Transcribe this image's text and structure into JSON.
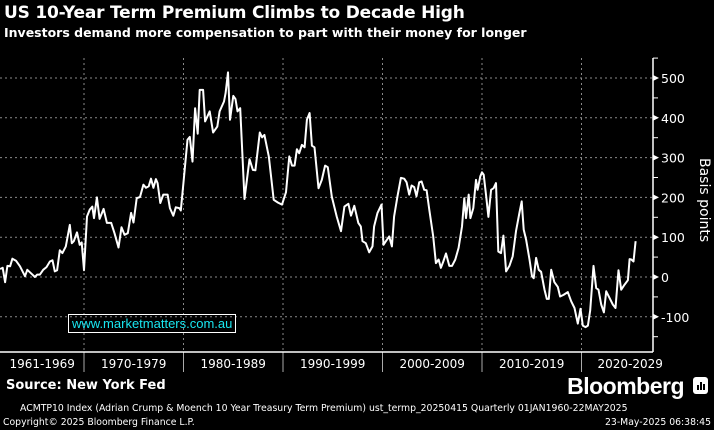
{
  "header": {
    "title": "US 10-Year Term Premium Climbs to Decade High",
    "subtitle": "Investors demand more compensation to part with their money for longer"
  },
  "watermark": "www.marketmatters.com.au",
  "footer": {
    "source": "Source: New York Fed",
    "brand": "Bloomberg",
    "description": "ACMTP10 Index (Adrian Crump & Moench 10 Year Treasury Term Premium) ust_termp_20250415  Quarterly 01JAN1960-22MAY2025",
    "copyright": "Copyright© 2025 Bloomberg Finance L.P.",
    "timestamp": "23-May-2025 06:38:45"
  },
  "colors": {
    "background": "#000000",
    "line": "#ffffff",
    "grid": "#8a8a8a",
    "watermark": "#19e6f0"
  },
  "chart_data": {
    "type": "line",
    "title": "US 10-Year Term Premium Climbs to Decade High",
    "ylabel": "Basis points",
    "xlabel": "",
    "ylim": [
      -150,
      550
    ],
    "xlim": [
      1961.5,
      2027.3
    ],
    "yticks": [
      -100,
      0,
      100,
      200,
      300,
      400,
      500
    ],
    "ytick_labels": [
      "-100",
      "0",
      "100",
      "200",
      "300",
      "400",
      "500"
    ],
    "xtick_labels": [
      "1961-1969",
      "1970-1979",
      "1980-1989",
      "1990-1999",
      "2000-2009",
      "2010-2019",
      "2020-2029"
    ],
    "xtick_centers": [
      1965.8,
      1975,
      1985,
      1995,
      2005,
      2015,
      2024.9
    ],
    "decade_boundaries": [
      1970,
      1980,
      1990,
      2000,
      2010,
      2020
    ],
    "grid": true,
    "series": [
      {
        "name": "ACMTP10 Index",
        "x": [
          1961.57,
          1961.83,
          1962.07,
          1962.3,
          1962.57,
          1962.8,
          1963.17,
          1963.57,
          1964.07,
          1964.3,
          1964.73,
          1965.07,
          1965.3,
          1965.57,
          1965.9,
          1966.23,
          1966.57,
          1966.83,
          1967.07,
          1967.3,
          1967.57,
          1967.83,
          1968.17,
          1968.57,
          1968.77,
          1968.97,
          1969.3,
          1969.57,
          1969.77,
          1970.0,
          1970.3,
          1970.57,
          1970.83,
          1971.0,
          1971.3,
          1971.57,
          1971.97,
          1972.3,
          1972.73,
          1973.07,
          1973.47,
          1973.77,
          1974.07,
          1974.4,
          1974.73,
          1974.97,
          1975.3,
          1975.63,
          1975.97,
          1976.23,
          1976.5,
          1976.73,
          1976.97,
          1977.23,
          1977.4,
          1977.67,
          1977.97,
          1978.4,
          1978.63,
          1978.97,
          1979.23,
          1979.57,
          1979.73,
          1980.0,
          1980.4,
          1980.63,
          1980.9,
          1981.17,
          1981.43,
          1981.63,
          1981.97,
          1982.17,
          1982.63,
          1982.97,
          1983.4,
          1983.63,
          1984.07,
          1984.23,
          1984.47,
          1984.67,
          1985.0,
          1985.23,
          1985.43,
          1985.7,
          1986.13,
          1986.63,
          1986.97,
          1987.23,
          1987.67,
          1987.9,
          1988.13,
          1988.57,
          1989.07,
          1989.5,
          1989.9,
          1990.3,
          1990.63,
          1990.9,
          1991.17,
          1991.4,
          1991.63,
          1991.9,
          1992.17,
          1992.4,
          1992.67,
          1992.9,
          1993.17,
          1993.57,
          1993.9,
          1994.23,
          1994.5,
          1994.9,
          1995.4,
          1995.83,
          1996.17,
          1996.57,
          1996.83,
          1997.17,
          1997.57,
          1997.82,
          1997.99,
          1998.32,
          1998.66,
          1998.99,
          1999.16,
          1999.5,
          1999.9,
          2000.1,
          2000.34,
          2000.67,
          2000.94,
          2001.17,
          2001.51,
          2001.85,
          2002.18,
          2002.42,
          2002.68,
          2002.92,
          2003.19,
          2003.42,
          2003.69,
          2003.93,
          2004.19,
          2004.43,
          2004.7,
          2005.1,
          2005.37,
          2005.64,
          2005.87,
          2006.11,
          2006.38,
          2006.71,
          2006.98,
          2007.32,
          2007.65,
          2007.99,
          2008.22,
          2008.39,
          2008.66,
          2008.83,
          2009.13,
          2009.4,
          2009.56,
          2009.83,
          2010.0,
          2010.17,
          2010.4,
          2010.64,
          2010.91,
          2011.17,
          2011.41,
          2011.64,
          2011.91,
          2012.15,
          2012.42,
          2012.75,
          2013.09,
          2013.42,
          2013.76,
          2013.99,
          2014.19,
          2014.43,
          2014.77,
          2015.03,
          2015.2,
          2015.44,
          2015.7,
          2015.94,
          2016.28,
          2016.51,
          2016.71,
          2016.95,
          2017.28,
          2017.62,
          2017.85,
          2018.19,
          2018.62,
          2018.96,
          2019.3,
          2019.63,
          2019.9,
          2020.13,
          2020.4,
          2020.64,
          2020.87,
          2021.21,
          2021.48,
          2021.71,
          2021.98,
          2022.25,
          2022.48,
          2022.82,
          2023.15,
          2023.42,
          2023.72,
          2023.99,
          2024.33,
          2024.66,
          2024.83,
          2025.0,
          2025.23,
          2025.44
        ],
        "y": [
          20,
          23,
          -13,
          28,
          27,
          46,
          41,
          27,
          2,
          18,
          8,
          0,
          6,
          6,
          18,
          25,
          39,
          42,
          14,
          17,
          67,
          60,
          77,
          131,
          85,
          90,
          112,
          81,
          87,
          17,
          152,
          169,
          177,
          148,
          200,
          146,
          171,
          136,
          136,
          110,
          74,
          125,
          106,
          110,
          161,
          137,
          198,
          201,
          232,
          224,
          228,
          247,
          224,
          246,
          236,
          186,
          207,
          207,
          173,
          154,
          175,
          173,
          167,
          238,
          345,
          352,
          290,
          424,
          360,
          470,
          470,
          391,
          416,
          363,
          378,
          416,
          441,
          462,
          514,
          395,
          455,
          447,
          416,
          424,
          196,
          296,
          269,
          268,
          363,
          351,
          357,
          303,
          194,
          187,
          182,
          213,
          303,
          280,
          280,
          321,
          311,
          332,
          326,
          395,
          412,
          330,
          326,
          223,
          244,
          280,
          276,
          202,
          152,
          115,
          177,
          184,
          154,
          179,
          136,
          127,
          90,
          85,
          62,
          77,
          127,
          161,
          182,
          81,
          90,
          102,
          77,
          152,
          203,
          249,
          247,
          238,
          207,
          230,
          226,
          203,
          238,
          240,
          219,
          218,
          169,
          102,
          35,
          44,
          23,
          39,
          59,
          28,
          28,
          44,
          73,
          127,
          198,
          148,
          207,
          148,
          173,
          244,
          219,
          253,
          263,
          257,
          207,
          151,
          219,
          223,
          236,
          64,
          60,
          104,
          14,
          28,
          52,
          115,
          161,
          190,
          119,
          94,
          44,
          2,
          -3,
          48,
          18,
          13,
          -32,
          -55,
          -55,
          18,
          -13,
          -25,
          -49,
          -45,
          -38,
          -61,
          -78,
          -117,
          -80,
          -122,
          -126,
          -122,
          -84,
          28,
          -28,
          -32,
          -69,
          -89,
          -36,
          -53,
          -69,
          -78,
          17,
          -32,
          -19,
          -8,
          45,
          44,
          39,
          90
        ]
      }
    ]
  }
}
